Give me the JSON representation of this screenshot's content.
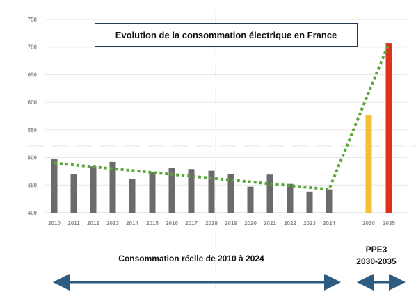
{
  "title": "Evolution de la consommation électrique en France",
  "caption_actual": "Consommation réelle de 2010 à 2024",
  "caption_plan_line1": "PPE3",
  "caption_plan_line2": "2030-2035",
  "colors": {
    "bar_actual": "#6b6b6b",
    "bar_2030": "#f2c037",
    "bar_2035": "#e0301e",
    "trend": "#5aa63a",
    "arrow": "#2e5c80",
    "grid": "#e6e6e6"
  },
  "chart_data": {
    "type": "bar",
    "title": "Evolution de la consommation électrique en France",
    "xlabel": "",
    "ylabel": "",
    "ylim": [
      400,
      750
    ],
    "yticks": [
      400,
      450,
      500,
      550,
      600,
      650,
      700,
      750
    ],
    "ytick_labels": [
      "400",
      "450",
      "500",
      "550",
      "600",
      "650",
      "700",
      "750"
    ],
    "grid": true,
    "categories": [
      "2010",
      "2011",
      "2012",
      "2013",
      "2014",
      "2015",
      "2016",
      "2017",
      "2018",
      "2019",
      "2020",
      "2021",
      "2022",
      "2023",
      "2024",
      "2030",
      "2035"
    ],
    "values": [
      497,
      470,
      484,
      492,
      461,
      473,
      481,
      479,
      476,
      470,
      447,
      469,
      452,
      438,
      442,
      577,
      707
    ],
    "bar_colors": [
      "#6b6b6b",
      "#6b6b6b",
      "#6b6b6b",
      "#6b6b6b",
      "#6b6b6b",
      "#6b6b6b",
      "#6b6b6b",
      "#6b6b6b",
      "#6b6b6b",
      "#6b6b6b",
      "#6b6b6b",
      "#6b6b6b",
      "#6b6b6b",
      "#6b6b6b",
      "#6b6b6b",
      "#f2c037",
      "#e0301e"
    ],
    "trend_line": {
      "style": "dotted",
      "points": [
        {
          "x": "2010",
          "y": 490
        },
        {
          "x": "2024",
          "y": 442
        },
        {
          "x": "2035",
          "y": 707
        }
      ]
    }
  }
}
